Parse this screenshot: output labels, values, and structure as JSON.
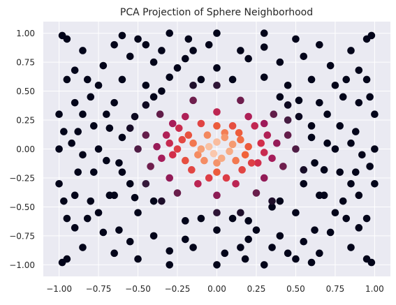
{
  "chart_data": {
    "type": "scatter",
    "title": "PCA Projection of Sphere Neighborhood",
    "xlabel": "",
    "ylabel": "",
    "xlim": [
      -1.1,
      1.1
    ],
    "ylim": [
      -1.1,
      1.1
    ],
    "x_ticks": [
      -1.0,
      -0.75,
      -0.5,
      -0.25,
      0.0,
      0.25,
      0.5,
      0.75,
      1.0
    ],
    "y_ticks": [
      -1.0,
      -0.75,
      -0.5,
      -0.25,
      0.0,
      0.25,
      0.5,
      0.75,
      1.0
    ],
    "x_tick_labels": [
      "−1.00",
      "−0.75",
      "−0.50",
      "−0.25",
      "0.00",
      "0.25",
      "0.50",
      "0.75",
      "1.00"
    ],
    "y_tick_labels": [
      "−1.00",
      "−0.75",
      "−0.50",
      "−0.25",
      "0.00",
      "0.25",
      "0.50",
      "0.75",
      "1.00"
    ],
    "grid": true,
    "legend": "none",
    "background_color": "#eaeaf2",
    "grid_color": "#ffffff",
    "colormap": "rocket",
    "colormap_stops": [
      "#03051a",
      "#3c1b3f",
      "#6b1e4c",
      "#a11a5b",
      "#d6304a",
      "#f0623a",
      "#f6a47b",
      "#fde6d8"
    ],
    "color_encoding": "closeness to the origin (dark = far, light = near)",
    "points": [
      [
        -0.22,
        0.08
      ],
      [
        -0.18,
        0.12
      ],
      [
        -0.15,
        0.05
      ],
      [
        -0.1,
        0.0
      ],
      [
        -0.05,
        0.02
      ],
      [
        0.0,
        0.06
      ],
      [
        0.05,
        0.1
      ],
      [
        0.1,
        0.04
      ],
      [
        0.15,
        0.08
      ],
      [
        0.2,
        0.02
      ],
      [
        -0.12,
        -0.05
      ],
      [
        -0.08,
        -0.1
      ],
      [
        -0.02,
        -0.04
      ],
      [
        0.03,
        -0.08
      ],
      [
        0.08,
        -0.02
      ],
      [
        0.12,
        -0.1
      ],
      [
        0.18,
        -0.05
      ],
      [
        0.22,
        -0.12
      ],
      [
        -0.2,
        -0.1
      ],
      [
        -0.25,
        0.0
      ],
      [
        0.0,
        -0.12
      ],
      [
        0.05,
        0.14
      ],
      [
        -0.06,
        0.12
      ],
      [
        0.14,
        0.14
      ],
      [
        -0.3,
        0.05
      ],
      [
        -0.28,
        -0.05
      ],
      [
        -0.32,
        0.12
      ],
      [
        0.28,
        0.05
      ],
      [
        0.3,
        -0.03
      ],
      [
        0.32,
        0.12
      ],
      [
        0.26,
        -0.12
      ],
      [
        -0.24,
        0.18
      ],
      [
        0.24,
        0.2
      ],
      [
        -0.1,
        0.22
      ],
      [
        0.0,
        0.2
      ],
      [
        0.1,
        0.2
      ],
      [
        -0.16,
        -0.18
      ],
      [
        0.0,
        -0.2
      ],
      [
        0.16,
        -0.18
      ],
      [
        -0.05,
        -0.25
      ],
      [
        0.06,
        -0.25
      ],
      [
        0.35,
        -0.08
      ],
      [
        -0.35,
        -0.08
      ],
      [
        0.38,
        0.05
      ],
      [
        -0.38,
        0.02
      ],
      [
        0.2,
        0.28
      ],
      [
        -0.2,
        0.28
      ],
      [
        -0.28,
        0.22
      ],
      [
        0.3,
        0.22
      ],
      [
        0.12,
        -0.3
      ],
      [
        -0.12,
        -0.3
      ],
      [
        -0.3,
        -0.25
      ],
      [
        0.3,
        -0.25
      ],
      [
        -0.36,
        0.3
      ],
      [
        0.36,
        0.3
      ],
      [
        0.0,
        0.32
      ],
      [
        -0.42,
        -0.15
      ],
      [
        0.42,
        -0.15
      ],
      [
        -0.45,
        0.12
      ],
      [
        0.45,
        0.12
      ],
      [
        0.25,
        -0.38
      ],
      [
        -0.25,
        -0.38
      ],
      [
        0.0,
        -0.4
      ],
      [
        -0.45,
        0.38
      ],
      [
        0.45,
        0.38
      ],
      [
        -0.15,
        0.42
      ],
      [
        0.15,
        0.42
      ],
      [
        -0.5,
        0.0
      ],
      [
        0.5,
        0.0
      ],
      [
        0.35,
        -0.45
      ],
      [
        -0.35,
        -0.45
      ],
      [
        -0.52,
        0.28
      ],
      [
        0.52,
        0.28
      ],
      [
        -0.55,
        -0.3
      ],
      [
        0.55,
        -0.3
      ],
      [
        0.0,
        0.55
      ],
      [
        0.0,
        -0.55
      ],
      [
        -0.6,
        0.1
      ],
      [
        0.6,
        0.1
      ],
      [
        -0.45,
        0.55
      ],
      [
        0.45,
        0.55
      ],
      [
        -0.3,
        0.62
      ],
      [
        0.3,
        0.62
      ],
      [
        -0.62,
        -0.12
      ],
      [
        0.62,
        -0.12
      ],
      [
        -0.5,
        -0.55
      ],
      [
        0.5,
        -0.55
      ],
      [
        0.2,
        -0.62
      ],
      [
        -0.2,
        -0.62
      ],
      [
        -0.7,
        0.3
      ],
      [
        0.7,
        0.3
      ],
      [
        -0.68,
        -0.4
      ],
      [
        0.68,
        -0.4
      ],
      [
        0.0,
        0.7
      ],
      [
        0.0,
        -0.7
      ],
      [
        -0.6,
        0.6
      ],
      [
        0.6,
        0.6
      ],
      [
        -0.75,
        0.0
      ],
      [
        0.75,
        0.0
      ],
      [
        -0.4,
        0.75
      ],
      [
        0.4,
        0.75
      ],
      [
        -0.4,
        -0.75
      ],
      [
        0.4,
        -0.75
      ],
      [
        -0.8,
        0.45
      ],
      [
        0.8,
        0.45
      ],
      [
        -0.8,
        -0.45
      ],
      [
        0.8,
        -0.45
      ],
      [
        -0.62,
        -0.7
      ],
      [
        0.62,
        -0.7
      ],
      [
        -0.15,
        0.85
      ],
      [
        0.15,
        0.85
      ],
      [
        -0.15,
        -0.85
      ],
      [
        0.15,
        -0.85
      ],
      [
        -0.88,
        0.15
      ],
      [
        0.88,
        0.15
      ],
      [
        -0.88,
        -0.2
      ],
      [
        0.88,
        -0.2
      ],
      [
        -0.72,
        0.72
      ],
      [
        0.72,
        0.72
      ],
      [
        -0.72,
        -0.72
      ],
      [
        0.72,
        -0.72
      ],
      [
        -0.95,
        0.6
      ],
      [
        0.95,
        0.6
      ],
      [
        -0.95,
        -0.6
      ],
      [
        0.95,
        -0.6
      ],
      [
        -0.5,
        0.95
      ],
      [
        0.5,
        0.95
      ],
      [
        -0.5,
        -0.95
      ],
      [
        0.5,
        -0.95
      ],
      [
        -0.95,
        0.95
      ],
      [
        0.95,
        0.95
      ],
      [
        -0.95,
        -0.95
      ],
      [
        0.95,
        -0.95
      ],
      [
        -1.0,
        0.3
      ],
      [
        1.0,
        0.3
      ],
      [
        -1.0,
        -0.3
      ],
      [
        1.0,
        -0.3
      ],
      [
        -0.3,
        1.0
      ],
      [
        0.3,
        1.0
      ],
      [
        -0.3,
        -1.0
      ],
      [
        0.3,
        -1.0
      ],
      [
        -0.85,
        0.85
      ],
      [
        0.85,
        0.85
      ],
      [
        -0.85,
        -0.85
      ],
      [
        0.85,
        -0.85
      ],
      [
        -1.0,
        0.0
      ],
      [
        1.0,
        0.0
      ],
      [
        0.0,
        1.0
      ],
      [
        0.0,
        -1.0
      ],
      [
        -0.98,
        -0.98
      ],
      [
        0.98,
        0.98
      ],
      [
        -0.98,
        0.98
      ],
      [
        0.98,
        -0.98
      ],
      [
        -0.65,
        0.9
      ],
      [
        0.65,
        0.9
      ],
      [
        -0.65,
        -0.9
      ],
      [
        0.65,
        -0.9
      ],
      [
        -0.9,
        0.68
      ],
      [
        0.9,
        0.68
      ],
      [
        -0.9,
        -0.68
      ],
      [
        0.9,
        -0.68
      ],
      [
        -0.78,
        0.2
      ],
      [
        0.78,
        0.2
      ],
      [
        -0.78,
        -0.2
      ],
      [
        0.78,
        -0.2
      ],
      [
        -0.2,
        0.78
      ],
      [
        0.2,
        0.78
      ],
      [
        -0.2,
        -0.78
      ],
      [
        0.2,
        -0.78
      ],
      [
        -0.55,
        0.8
      ],
      [
        0.55,
        0.8
      ],
      [
        -0.55,
        -0.8
      ],
      [
        0.55,
        -0.8
      ],
      [
        -0.82,
        0.6
      ],
      [
        0.82,
        0.6
      ],
      [
        -0.82,
        -0.6
      ],
      [
        0.82,
        -0.6
      ],
      [
        -0.4,
        0.45
      ],
      [
        0.4,
        0.45
      ],
      [
        -0.4,
        -0.45
      ],
      [
        0.4,
        -0.45
      ],
      [
        -0.65,
        0.4
      ],
      [
        0.65,
        0.4
      ],
      [
        -0.65,
        -0.4
      ],
      [
        0.65,
        -0.4
      ],
      [
        -0.9,
        0.4
      ],
      [
        0.9,
        0.4
      ],
      [
        -0.9,
        -0.4
      ],
      [
        0.9,
        -0.4
      ],
      [
        -0.1,
        0.6
      ],
      [
        0.1,
        0.6
      ],
      [
        -0.1,
        -0.6
      ],
      [
        0.1,
        -0.6
      ],
      [
        -0.6,
        -0.2
      ],
      [
        0.6,
        0.2
      ],
      [
        -0.7,
        -0.1
      ],
      [
        0.7,
        0.05
      ],
      [
        -0.3,
        -0.88
      ],
      [
        0.3,
        0.88
      ],
      [
        -0.92,
        0.05
      ],
      [
        0.92,
        -0.05
      ],
      [
        -0.45,
        -0.3
      ],
      [
        0.45,
        0.25
      ],
      [
        -0.35,
        0.5
      ],
      [
        0.35,
        -0.5
      ],
      [
        -0.15,
        0.55
      ],
      [
        0.15,
        -0.55
      ],
      [
        -0.55,
        0.18
      ],
      [
        0.55,
        -0.18
      ],
      [
        -0.75,
        0.55
      ],
      [
        0.75,
        -0.55
      ],
      [
        -0.75,
        -0.55
      ],
      [
        0.75,
        0.55
      ],
      [
        -0.25,
        0.7
      ],
      [
        0.25,
        -0.7
      ],
      [
        -0.05,
        0.9
      ],
      [
        0.05,
        -0.9
      ],
      [
        -0.97,
        0.15
      ],
      [
        0.97,
        -0.15
      ],
      [
        -0.97,
        -0.45
      ],
      [
        0.97,
        0.45
      ],
      [
        -0.45,
        0.9
      ],
      [
        0.45,
        -0.9
      ],
      [
        -0.6,
        0.98
      ],
      [
        0.6,
        -0.98
      ],
      [
        -0.18,
        0.95
      ],
      [
        0.18,
        -0.95
      ],
      [
        -0.85,
        0.3
      ],
      [
        0.85,
        -0.3
      ],
      [
        -0.85,
        -0.05
      ],
      [
        0.85,
        0.05
      ],
      [
        -0.35,
        0.85
      ],
      [
        0.35,
        -0.85
      ],
      [
        -0.68,
        0.18
      ],
      [
        0.68,
        -0.18
      ],
      [
        -0.52,
        -0.42
      ],
      [
        0.52,
        0.42
      ]
    ]
  }
}
